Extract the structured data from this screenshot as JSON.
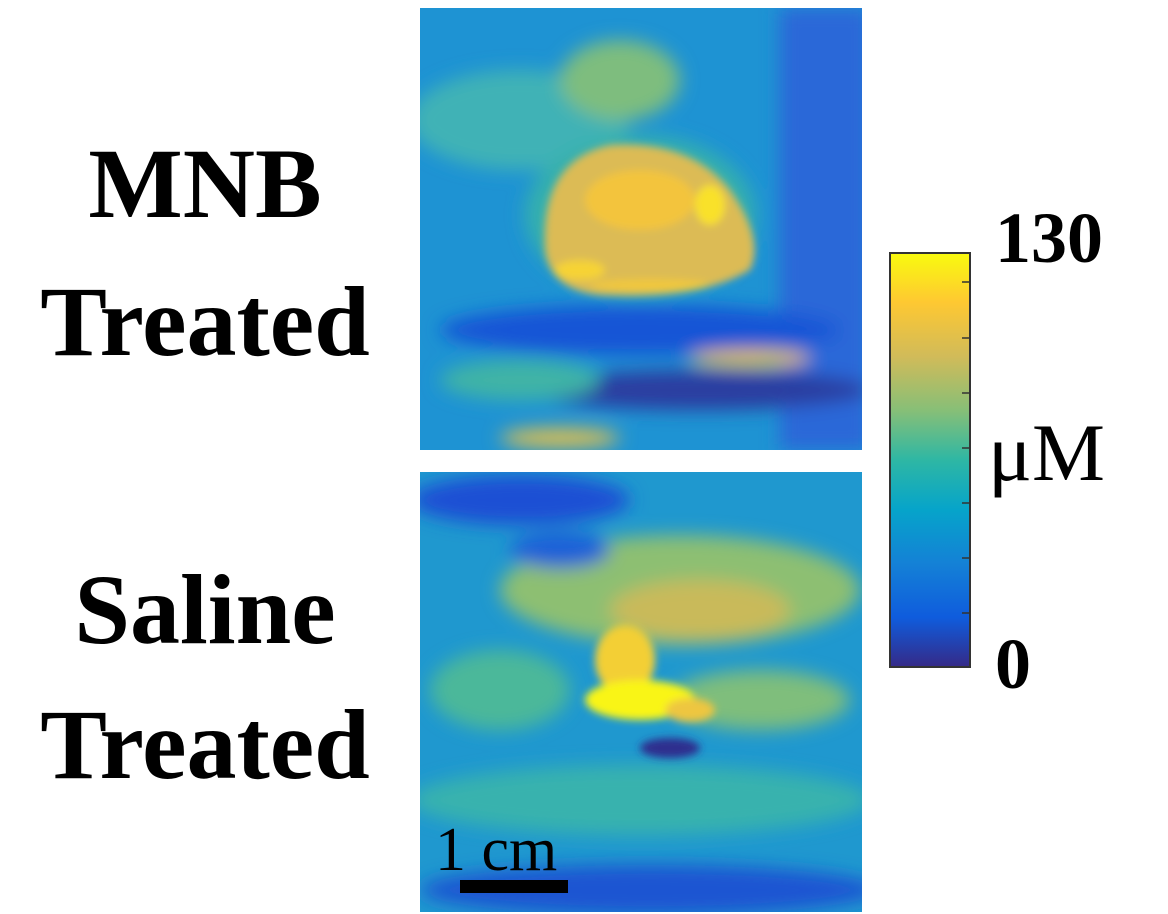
{
  "panels": [
    {
      "label_lines": [
        "MNB",
        "Treated"
      ]
    },
    {
      "label_lines": [
        "Saline",
        "Treated"
      ]
    }
  ],
  "colorbar": {
    "max": 130,
    "min": 0,
    "unit": "μM"
  },
  "scale_bar": "1 cm"
}
